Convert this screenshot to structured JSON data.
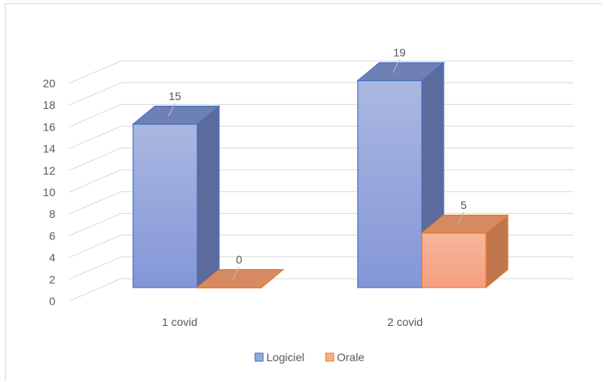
{
  "chart_data": {
    "type": "bar",
    "style": "3d-clustered-column",
    "categories": [
      "1 covid",
      "2 covid"
    ],
    "series": [
      {
        "name": "Logiciel",
        "values": [
          15,
          19
        ],
        "color": "#8faadc"
      },
      {
        "name": "Orale",
        "values": [
          0,
          5
        ],
        "color": "#f4b183"
      }
    ],
    "data_labels": true,
    "ylim": [
      0,
      20
    ],
    "yticks": [
      0,
      2,
      4,
      6,
      8,
      10,
      12,
      14,
      16,
      18,
      20
    ],
    "grid": true,
    "legend_position": "bottom"
  }
}
